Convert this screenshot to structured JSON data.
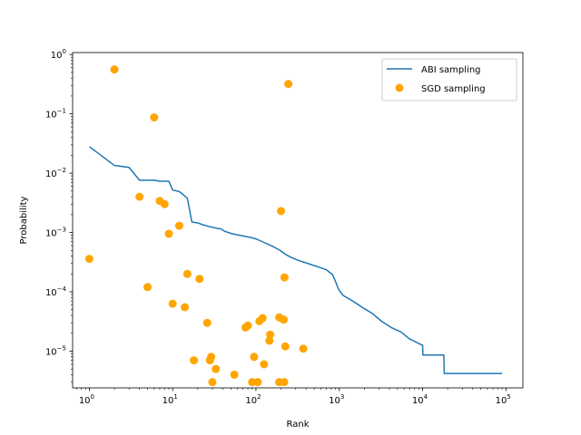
{
  "chart_data": {
    "type": "scatter",
    "xlabel": "Rank",
    "ylabel": "Probability",
    "xscale": "log",
    "yscale": "log",
    "xlim": [
      0.63,
      160000
    ],
    "ylim": [
      2.4e-06,
      1.08
    ],
    "x_ticks": [
      {
        "value": 1,
        "base": "10",
        "exp": "0"
      },
      {
        "value": 10,
        "base": "10",
        "exp": "1"
      },
      {
        "value": 100,
        "base": "10",
        "exp": "2"
      },
      {
        "value": 1000,
        "base": "10",
        "exp": "3"
      },
      {
        "value": 10000,
        "base": "10",
        "exp": "4"
      },
      {
        "value": 100000,
        "base": "10",
        "exp": "5"
      }
    ],
    "y_ticks": [
      {
        "value": 1e-05,
        "base": "10",
        "exp": "−5"
      },
      {
        "value": 0.0001,
        "base": "10",
        "exp": "−4"
      },
      {
        "value": 0.001,
        "base": "10",
        "exp": "−3"
      },
      {
        "value": 0.01,
        "base": "10",
        "exp": "−2"
      },
      {
        "value": 0.1,
        "base": "10",
        "exp": "−1"
      },
      {
        "value": 1,
        "base": "10",
        "exp": "0"
      }
    ],
    "legend_position": "upper right",
    "series": [
      {
        "name": "ABI sampling",
        "kind": "line",
        "color": "#1f77b4",
        "points": [
          [
            1,
            0.028
          ],
          [
            2,
            0.0135
          ],
          [
            3,
            0.0125
          ],
          [
            4,
            0.0076
          ],
          [
            6,
            0.0076
          ],
          [
            7,
            0.0073
          ],
          [
            9,
            0.0073
          ],
          [
            10,
            0.0052
          ],
          [
            12,
            0.0049
          ],
          [
            13,
            0.0045
          ],
          [
            14,
            0.0041
          ],
          [
            15,
            0.0038
          ],
          [
            17,
            0.0015
          ],
          [
            20,
            0.00145
          ],
          [
            23,
            0.00135
          ],
          [
            28,
            0.00125
          ],
          [
            34,
            0.00118
          ],
          [
            38,
            0.00115
          ],
          [
            42,
            0.00105
          ],
          [
            52,
            0.00095
          ],
          [
            68,
            0.00088
          ],
          [
            85,
            0.00083
          ],
          [
            100,
            0.00078
          ],
          [
            125,
            0.00068
          ],
          [
            160,
            0.00058
          ],
          [
            195,
            0.0005
          ],
          [
            225,
            0.00043
          ],
          [
            265,
            0.00038
          ],
          [
            320,
            0.00034
          ],
          [
            420,
            0.0003
          ],
          [
            550,
            0.000265
          ],
          [
            700,
            0.000235
          ],
          [
            830,
            0.000195
          ],
          [
            900,
            0.00015
          ],
          [
            980,
            0.00011
          ],
          [
            1100,
            8.8e-05
          ],
          [
            1350,
            7.4e-05
          ],
          [
            1650,
            6.2e-05
          ],
          [
            2000,
            5.2e-05
          ],
          [
            2500,
            4.3e-05
          ],
          [
            3200,
            3.2e-05
          ],
          [
            4200,
            2.5e-05
          ],
          [
            5500,
            2.1e-05
          ],
          [
            7000,
            1.6e-05
          ],
          [
            10000,
            1.25e-05
          ],
          [
            10100,
            8.6e-06
          ],
          [
            18000,
            8.6e-06
          ],
          [
            18200,
            4.2e-06
          ],
          [
            90000,
            4.2e-06
          ]
        ]
      },
      {
        "name": "SGD sampling",
        "kind": "scatter",
        "color": "#ffa500",
        "points": [
          [
            1,
            0.00036
          ],
          [
            2,
            0.56
          ],
          [
            4,
            0.004
          ],
          [
            5,
            0.00012
          ],
          [
            6,
            0.087
          ],
          [
            7,
            0.0034
          ],
          [
            8,
            0.003
          ],
          [
            9,
            0.00095
          ],
          [
            10,
            6.3e-05
          ],
          [
            12,
            0.0013
          ],
          [
            14,
            5.5e-05
          ],
          [
            15,
            0.0002
          ],
          [
            18,
            7e-06
          ],
          [
            21,
            0.000165
          ],
          [
            26,
            3e-05
          ],
          [
            28,
            7e-06
          ],
          [
            29,
            8e-06
          ],
          [
            30,
            3e-06
          ],
          [
            33,
            5e-06
          ],
          [
            55,
            4e-06
          ],
          [
            75,
            2.5e-05
          ],
          [
            80,
            2.7e-05
          ],
          [
            90,
            3e-06
          ],
          [
            95,
            8e-06
          ],
          [
            105,
            3e-06
          ],
          [
            110,
            3.2e-05
          ],
          [
            120,
            3.6e-05
          ],
          [
            125,
            6e-06
          ],
          [
            145,
            1.5e-05
          ],
          [
            148,
            1.9e-05
          ],
          [
            190,
            3.7e-05
          ],
          [
            190,
            3e-06
          ],
          [
            200,
            0.0023
          ],
          [
            215,
            3.4e-05
          ],
          [
            218,
            3e-06
          ],
          [
            220,
            0.000175
          ],
          [
            225,
            1.2e-05
          ],
          [
            245,
            0.32
          ],
          [
            370,
            1.1e-05
          ]
        ]
      }
    ]
  }
}
